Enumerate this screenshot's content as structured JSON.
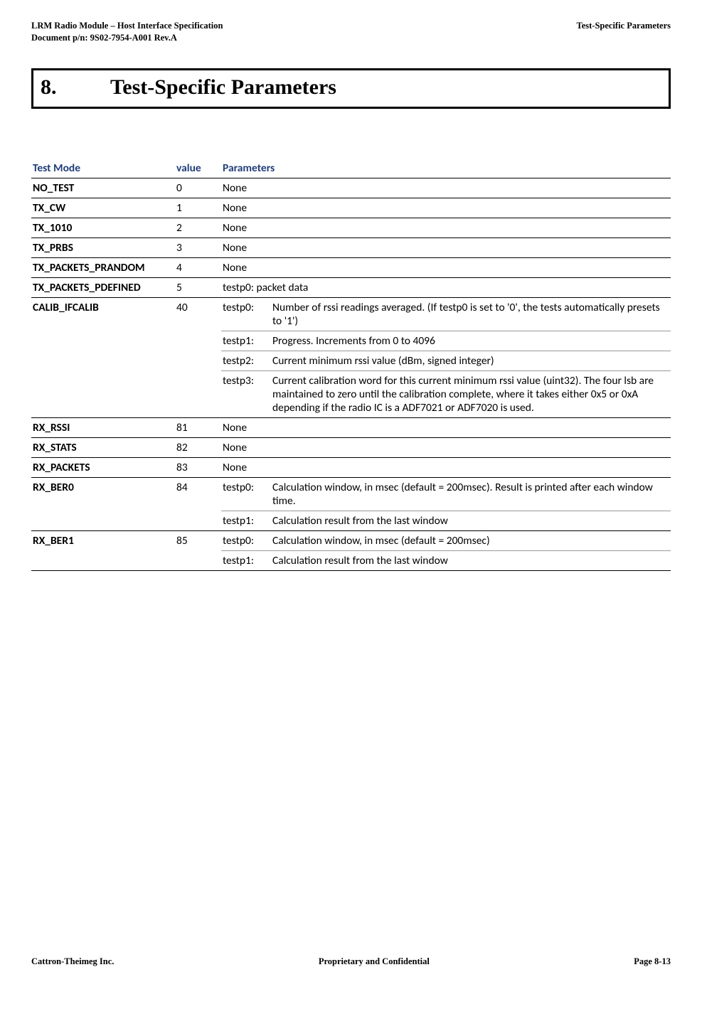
{
  "header": {
    "left_line1": "LRM Radio Module – Host Interface Specification",
    "left_line2": "Document p/n: 9S02-7954-A001 Rev.A",
    "right": "Test-Specific Parameters"
  },
  "section": {
    "number": "8.",
    "title": "Test-Specific Parameters"
  },
  "table": {
    "headers": {
      "mode": "Test Mode",
      "value": "value",
      "params": "Parameters"
    },
    "rows": [
      {
        "mode": "NO_TEST",
        "value": "0",
        "params": [
          {
            "desc": "None"
          }
        ]
      },
      {
        "mode": "TX_CW",
        "value": "1",
        "params": [
          {
            "desc": "None"
          }
        ]
      },
      {
        "mode": "TX_1010",
        "value": "2",
        "params": [
          {
            "desc": "None"
          }
        ]
      },
      {
        "mode": "TX_PRBS",
        "value": "3",
        "params": [
          {
            "desc": "None"
          }
        ]
      },
      {
        "mode": "TX_PACKETS_PRANDOM",
        "value": "4",
        "params": [
          {
            "desc": "None"
          }
        ]
      },
      {
        "mode": "TX_PACKETS_PDEFINED",
        "value": "5",
        "params": [
          {
            "desc": "testp0: packet data"
          }
        ]
      },
      {
        "mode": "CALIB_IFCALIB",
        "value": "40",
        "params": [
          {
            "key": "testp0:",
            "desc": "Number of rssi readings averaged. (If testp0 is set to '0', the tests automatically presets to '1')"
          },
          {
            "key": "testp1:",
            "desc": "Progress.  Increments from 0 to 4096"
          },
          {
            "key": "testp2:",
            "desc": "Current minimum rssi value (dBm, signed integer)"
          },
          {
            "key": "testp3:",
            "desc": "Current calibration word for this current minimum rssi value (uint32).  The four lsb are maintained to zero until the calibration complete, where it takes either 0x5 or 0xA depending if the radio IC is a ADF7021 or ADF7020 is used."
          }
        ]
      },
      {
        "mode": "RX_RSSI",
        "value": "81",
        "params": [
          {
            "desc": "None"
          }
        ]
      },
      {
        "mode": "RX_STATS",
        "value": "82",
        "params": [
          {
            "desc": "None"
          }
        ]
      },
      {
        "mode": "RX_PACKETS",
        "value": "83",
        "params": [
          {
            "desc": "None"
          }
        ]
      },
      {
        "mode": "RX_BER0",
        "value": "84",
        "params": [
          {
            "key": "testp0:",
            "desc": "Calculation window, in msec (default = 200msec).  Result is printed after each window time."
          },
          {
            "key": "testp1:",
            "desc": "Calculation result from the last window"
          }
        ]
      },
      {
        "mode": "RX_BER1",
        "value": "85",
        "params": [
          {
            "key": "testp0:",
            "desc": "Calculation window, in msec (default = 200msec)"
          },
          {
            "key": "testp1:",
            "desc": "Calculation result from the last window"
          }
        ]
      }
    ]
  },
  "footer": {
    "left": "Cattron-Theimeg Inc.",
    "center": "Proprietary and Confidential",
    "right": "Page  8-13"
  }
}
